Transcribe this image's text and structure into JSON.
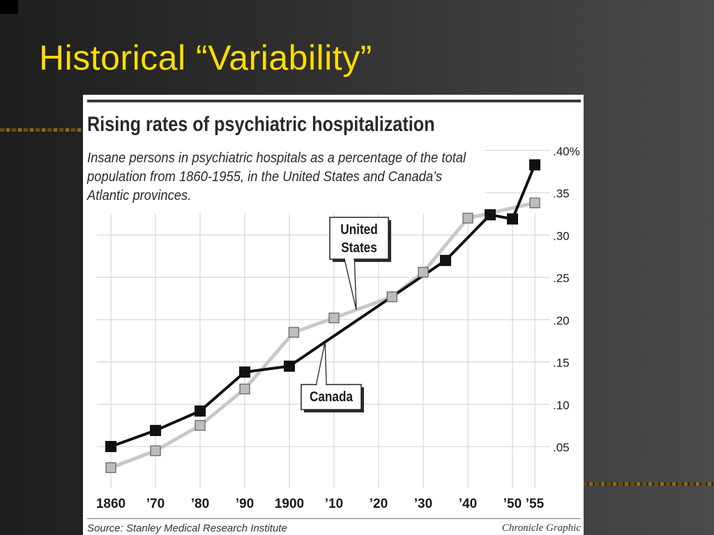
{
  "slide": {
    "title": "Historical “Variability”"
  },
  "colors": {
    "background": "#2e2e2e",
    "title": "#ffdd00",
    "canada_line": "#111111",
    "us_line": "#c8c8c8",
    "us_marker_fill": "#bdbdbd"
  },
  "chart_data": {
    "type": "line",
    "title": "Rising rates of psychiatric hospitalization",
    "subtitle": "Insane persons in psychiatric hospitals as a percentage of the total population from 1860-1955, in the United States and Canada’s Atlantic provinces.",
    "xlabel": "",
    "ylabel": "",
    "x_ticks": [
      {
        "value": 1860,
        "label": "1860"
      },
      {
        "value": 1870,
        "label": "’70"
      },
      {
        "value": 1880,
        "label": "’80"
      },
      {
        "value": 1890,
        "label": "’90"
      },
      {
        "value": 1900,
        "label": "1900"
      },
      {
        "value": 1910,
        "label": "’10"
      },
      {
        "value": 1920,
        "label": "’20"
      },
      {
        "value": 1930,
        "label": "’30"
      },
      {
        "value": 1940,
        "label": "’40"
      },
      {
        "value": 1950,
        "label": "’50"
      },
      {
        "value": 1955,
        "label": "’55"
      }
    ],
    "y_ticks": [
      {
        "value": 0.05,
        "label": ".05"
      },
      {
        "value": 0.1,
        "label": ".10"
      },
      {
        "value": 0.15,
        "label": ".15"
      },
      {
        "value": 0.2,
        "label": ".20"
      },
      {
        "value": 0.25,
        "label": ".25"
      },
      {
        "value": 0.3,
        "label": ".30"
      },
      {
        "value": 0.35,
        "label": ".35"
      },
      {
        "value": 0.4,
        "label": ".40%"
      }
    ],
    "xlim": [
      1855,
      1957
    ],
    "ylim": [
      0.0,
      0.4
    ],
    "grid": true,
    "series": [
      {
        "name": "United States",
        "x": [
          1860,
          1870,
          1880,
          1890,
          1901,
          1910,
          1923,
          1930,
          1940,
          1955
        ],
        "y": [
          0.025,
          0.045,
          0.075,
          0.118,
          0.185,
          0.202,
          0.227,
          0.256,
          0.32,
          0.338
        ]
      },
      {
        "name": "Canada",
        "x": [
          1860,
          1870,
          1880,
          1890,
          1900,
          1935,
          1945,
          1950,
          1955
        ],
        "y": [
          0.05,
          0.069,
          0.092,
          0.138,
          0.145,
          0.27,
          0.324,
          0.319,
          0.383
        ]
      }
    ],
    "annotations": [
      {
        "text_lines": [
          "United",
          "States"
        ],
        "points_to_year": 1915,
        "series": "United States"
      },
      {
        "text_lines": [
          "Canada"
        ],
        "points_to_year": 1908,
        "series": "Canada"
      }
    ],
    "source": "Source: Stanley Medical Research Institute",
    "credit": "Chronicle Graphic"
  }
}
